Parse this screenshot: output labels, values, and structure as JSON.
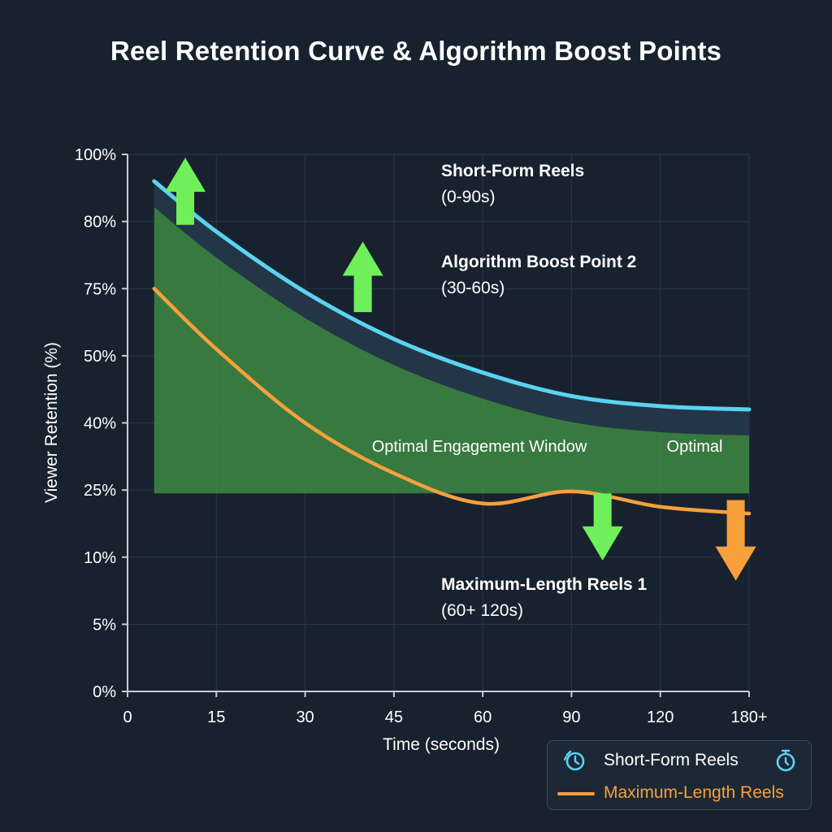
{
  "title": "Reel Retention Curve & Algorithm Boost Points",
  "colors": {
    "background": "#18222f",
    "short_form": "#5ad3f0",
    "max_length": "#f7a03c",
    "boost_arrow": "#6ff05a",
    "window_fill": "#3f8c43",
    "band_fill": "#23384a",
    "grid": "#2a3646",
    "axis": "#c8ccd2",
    "text": "#ffffff"
  },
  "chart_data": {
    "type": "line",
    "title": "Reel Retention Curve & Algorithm Boost Points",
    "xlabel": "Time (seconds)",
    "ylabel": "Viewer Retention (%)",
    "x_ticks": [
      "0",
      "15",
      "30",
      "45",
      "60",
      "90",
      "120",
      "180+"
    ],
    "y_ticks": [
      "0%",
      "5%",
      "10%",
      "25%",
      "40%",
      "50%",
      "75%",
      "80%",
      "100%"
    ],
    "x_index_range": [
      0,
      7
    ],
    "y_index_range": [
      0,
      8
    ],
    "note_on_scale": "Both axes use categorical (evenly spaced) tick positions; series points are expressed as fractional tick indices.",
    "series": [
      {
        "name": "Short-Form Reels",
        "color": "#5ad3f0",
        "points_index": [
          [
            0.3,
            7.6
          ],
          [
            1.0,
            6.85
          ],
          [
            2.0,
            5.95
          ],
          [
            3.0,
            5.25
          ],
          [
            4.0,
            4.75
          ],
          [
            5.0,
            4.4
          ],
          [
            6.0,
            4.25
          ],
          [
            7.0,
            4.2
          ]
        ]
      },
      {
        "name": "Maximum-Length Reels",
        "color": "#f7a03c",
        "points_index": [
          [
            0.3,
            6.0
          ],
          [
            1.0,
            5.1
          ],
          [
            2.0,
            4.0
          ],
          [
            3.0,
            3.25
          ],
          [
            4.0,
            2.8
          ],
          [
            5.0,
            2.98
          ],
          [
            6.0,
            2.75
          ],
          [
            7.0,
            2.65
          ]
        ]
      }
    ],
    "shaded_window": {
      "label": "Optimal Engagement Window",
      "label_right": "Optimal",
      "x_index": [
        0.3,
        7.0
      ],
      "y_bottom_index": 2.95
    },
    "boost_arrows": [
      {
        "direction": "up",
        "x_index": 0.65,
        "y_index_from": 6.95,
        "y_index_to": 7.95,
        "color": "#6ff05a"
      },
      {
        "direction": "up",
        "x_index": 2.65,
        "y_index_from": 5.65,
        "y_index_to": 6.7,
        "color": "#6ff05a"
      },
      {
        "direction": "down",
        "x_index": 5.35,
        "y_index_from": 2.95,
        "y_index_to": 1.95,
        "color": "#6ff05a"
      },
      {
        "direction": "down",
        "x_index": 6.85,
        "y_index_from": 2.85,
        "y_index_to": 1.65,
        "color": "#f7a03c"
      }
    ],
    "annotations": [
      {
        "title": "Short-Form Reels",
        "subtitle": "(0-90s)"
      },
      {
        "title": "Algorithm Boost Point 2",
        "subtitle": "(30-60s)"
      },
      {
        "title": "Maximum-Length Reels 1",
        "subtitle": "(60+ 120s)"
      }
    ],
    "legend": {
      "placement": "bottom-right",
      "items": [
        {
          "label": "Short-Form Reels",
          "color": "#5ad3f0",
          "icon": "stopwatch-icon"
        },
        {
          "label": "Maximum-Length Reels",
          "color": "#f7a03c",
          "icon": "line-swatch"
        }
      ]
    },
    "grid": true
  }
}
